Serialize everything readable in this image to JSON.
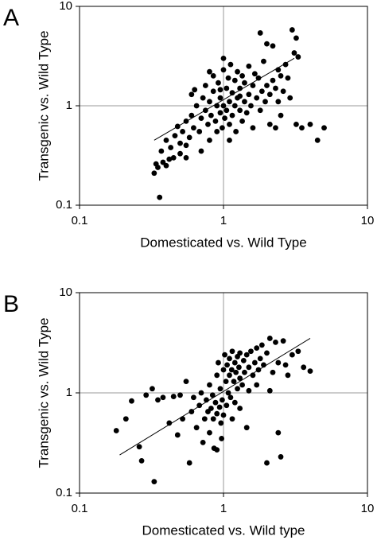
{
  "chart_data": [
    {
      "type": "scatter",
      "panel": "A",
      "xlabel": "Domesticated vs. Wild Type",
      "ylabel": "Transgenic vs. Wild Type",
      "xscale": "log",
      "yscale": "log",
      "xlim": [
        0.1,
        10
      ],
      "ylim": [
        0.1,
        10
      ],
      "xticks": [
        0.1,
        1,
        10
      ],
      "yticks": [
        0.1,
        1,
        10
      ],
      "grid": true,
      "color": "#000000",
      "x": [
        0.33,
        0.35,
        0.36,
        0.38,
        0.4,
        0.42,
        0.45,
        0.34,
        0.37,
        0.4,
        0.43,
        0.46,
        0.5,
        0.48,
        0.52,
        0.55,
        0.5,
        0.55,
        0.58,
        0.6,
        0.62,
        0.65,
        0.6,
        0.63,
        0.68,
        0.7,
        0.72,
        0.75,
        0.75,
        0.78,
        0.8,
        0.8,
        0.82,
        0.85,
        0.85,
        0.88,
        0.9,
        0.9,
        0.92,
        0.95,
        0.95,
        0.98,
        1.0,
        1.0,
        1.02,
        1.05,
        1.05,
        1.08,
        1.1,
        1.1,
        1.12,
        1.15,
        1.15,
        1.2,
        1.2,
        1.22,
        1.25,
        1.25,
        1.3,
        1.3,
        1.35,
        1.35,
        1.4,
        1.4,
        1.45,
        1.5,
        1.5,
        1.55,
        1.6,
        1.6,
        1.65,
        1.7,
        1.75,
        1.8,
        1.8,
        1.85,
        1.9,
        1.95,
        2.0,
        2.0,
        2.1,
        2.1,
        2.2,
        2.2,
        2.3,
        2.4,
        2.4,
        2.5,
        2.6,
        2.7,
        2.8,
        2.9,
        3.0,
        3.1,
        3.2,
        3.3,
        3.2,
        3.5,
        4.0,
        4.5,
        5.0,
        2.3,
        1.0,
        0.8,
        0.7,
        0.55,
        1.3,
        0.95,
        1.1,
        2.5
      ],
      "y": [
        0.21,
        0.24,
        0.12,
        0.27,
        0.25,
        0.29,
        0.3,
        0.26,
        0.35,
        0.45,
        0.38,
        0.5,
        0.42,
        0.62,
        0.55,
        0.7,
        0.33,
        0.4,
        0.48,
        0.8,
        0.6,
        1.0,
        1.3,
        1.45,
        0.55,
        0.75,
        1.2,
        0.9,
        1.6,
        0.65,
        1.1,
        0.45,
        0.8,
        1.4,
        2.0,
        0.7,
        1.0,
        0.55,
        1.7,
        0.85,
        1.2,
        0.6,
        1.0,
        2.3,
        0.75,
        1.5,
        0.9,
        1.9,
        0.65,
        1.1,
        2.6,
        0.8,
        1.35,
        1.0,
        1.8,
        0.55,
        1.2,
        2.2,
        0.9,
        1.5,
        0.7,
        2.0,
        1.1,
        1.7,
        0.85,
        1.3,
        2.5,
        1.0,
        1.6,
        0.6,
        2.1,
        1.2,
        1.9,
        5.4,
        0.9,
        1.4,
        2.8,
        1.1,
        4.2,
        1.6,
        1.3,
        0.65,
        4.0,
        1.8,
        1.5,
        2.3,
        1.1,
        0.8,
        1.4,
        2.6,
        1.9,
        1.2,
        5.8,
        3.4,
        4.8,
        3.1,
        0.65,
        0.6,
        0.65,
        0.45,
        0.6,
        0.6,
        3.0,
        2.2,
        0.35,
        0.3,
        1.25,
        1.45,
        0.45,
        2.0
      ],
      "trendline": {
        "x": [
          0.33,
          3.1
        ],
        "y": [
          0.45,
          3.0
        ]
      }
    },
    {
      "type": "scatter",
      "panel": "B",
      "xlabel": "Domesticated vs. Wild type",
      "ylabel": "Transgenic vs. Wild Type",
      "xscale": "log",
      "yscale": "log",
      "xlim": [
        0.1,
        10
      ],
      "ylim": [
        0.1,
        10
      ],
      "xticks": [
        0.1,
        1,
        10
      ],
      "yticks": [
        0.1,
        1,
        10
      ],
      "grid": true,
      "color": "#000000",
      "x": [
        0.18,
        0.21,
        0.23,
        0.26,
        0.27,
        0.29,
        0.32,
        0.33,
        0.35,
        0.38,
        0.42,
        0.45,
        0.48,
        0.5,
        0.52,
        0.55,
        0.58,
        0.6,
        0.62,
        0.65,
        0.68,
        0.7,
        0.72,
        0.74,
        0.76,
        0.78,
        0.8,
        0.8,
        0.82,
        0.84,
        0.85,
        0.86,
        0.88,
        0.9,
        0.9,
        0.92,
        0.94,
        0.95,
        0.96,
        0.98,
        1.0,
        1.0,
        1.02,
        1.04,
        1.05,
        1.06,
        1.08,
        1.1,
        1.1,
        1.12,
        1.14,
        1.15,
        1.18,
        1.2,
        1.2,
        1.22,
        1.25,
        1.25,
        1.28,
        1.3,
        1.3,
        1.35,
        1.38,
        1.4,
        1.45,
        1.5,
        1.5,
        1.55,
        1.6,
        1.65,
        1.7,
        1.75,
        1.8,
        1.85,
        1.9,
        2.0,
        2.0,
        2.1,
        2.2,
        2.3,
        2.4,
        2.4,
        2.5,
        2.6,
        2.7,
        2.8,
        3.0,
        3.3,
        3.6,
        4.0,
        1.15,
        0.97,
        1.3,
        0.9,
        1.7,
        2.1,
        1.45
      ],
      "y": [
        0.42,
        0.55,
        0.83,
        0.29,
        0.21,
        0.95,
        1.1,
        0.13,
        0.85,
        0.9,
        0.5,
        0.92,
        0.38,
        0.95,
        0.55,
        1.3,
        0.2,
        0.65,
        0.9,
        0.45,
        0.75,
        1.0,
        0.32,
        0.55,
        0.85,
        0.65,
        1.2,
        0.4,
        0.7,
        0.95,
        0.55,
        0.28,
        0.8,
        1.5,
        0.62,
        2.0,
        0.72,
        1.1,
        0.5,
        0.85,
        1.7,
        0.6,
        2.4,
        1.3,
        0.75,
        1.9,
        1.0,
        2.2,
        1.5,
        0.9,
        1.7,
        2.6,
        1.3,
        2.0,
        0.8,
        1.6,
        2.3,
        1.1,
        1.8,
        2.5,
        1.4,
        1.2,
        2.1,
        1.6,
        2.4,
        1.8,
        1.05,
        2.6,
        1.5,
        2.0,
        2.8,
        1.7,
        2.2,
        3.0,
        1.9,
        0.2,
        2.5,
        3.5,
        1.6,
        3.2,
        0.4,
        2.0,
        0.23,
        3.3,
        1.9,
        1.5,
        2.4,
        2.6,
        1.8,
        1.65,
        0.55,
        0.35,
        0.7,
        0.27,
        1.2,
        1.05,
        0.45
      ],
      "trendline": {
        "x": [
          0.19,
          4.0
        ],
        "y": [
          0.24,
          3.5
        ]
      }
    }
  ]
}
